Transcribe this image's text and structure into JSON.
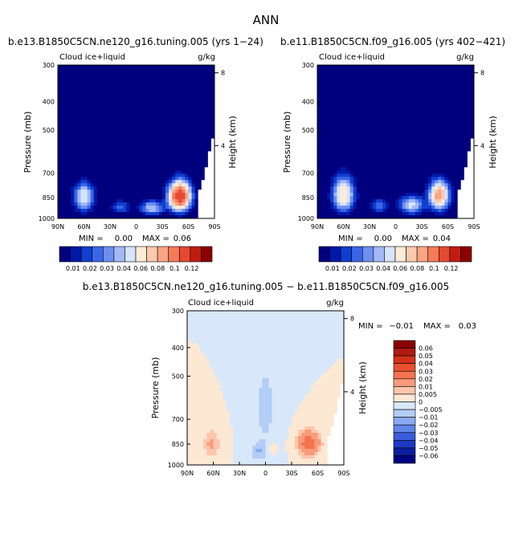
{
  "page_title": "ANN",
  "chart_data": [
    {
      "type": "heatmap",
      "title": "b.e13.B1850C5CN.ne120_g16.tuning.005 (yrs 1−24)",
      "left_label": "Cloud ice+liquid",
      "units": "g/kg",
      "xlabel": "",
      "ylabel": "Pressure (mb)",
      "ylabel_right": "Height (km)",
      "x_ticks": [
        "90N",
        "60N",
        "30N",
        "0",
        "30S",
        "60S",
        "90S"
      ],
      "y_ticks": [
        "300",
        "400",
        "500",
        "700",
        "850",
        "1000"
      ],
      "height_ticks": [
        "8",
        "4"
      ],
      "ylim": [
        1000,
        300
      ],
      "min_label": "MIN =",
      "min_value": "0.00",
      "max_label": "MAX =",
      "max_value": "0.06",
      "colorbar": {
        "orientation": "horizontal",
        "labels": [
          "0.01",
          "0.02",
          "0.03",
          "0.04",
          "0.06",
          "0.08",
          "0.1",
          "0.12"
        ],
        "colors": [
          "#00007f",
          "#0018a8",
          "#0f3fd0",
          "#3a66e6",
          "#6d8ff0",
          "#a3b8f6",
          "#d6e4fa",
          "#fdebd8",
          "#fcc9ae",
          "#fba586",
          "#f47a5a",
          "#e64932",
          "#c21c12",
          "#8b0000"
        ]
      },
      "blobs": [
        {
          "x": 60,
          "p": 845,
          "amp": 0.025,
          "sx": 11,
          "sp": 90
        },
        {
          "x": -50,
          "p": 840,
          "amp": 0.06,
          "sx": 12,
          "sp": 90
        },
        {
          "x": -18,
          "p": 920,
          "amp": 0.02,
          "sx": 13,
          "sp": 50
        },
        {
          "x": 18,
          "p": 915,
          "amp": 0.012,
          "sx": 10,
          "sp": 45
        }
      ]
    },
    {
      "type": "heatmap",
      "title": "b.e11.B1850C5CN.f09_g16.005 (yrs 402−421)",
      "left_label": "Cloud ice+liquid",
      "units": "g/kg",
      "xlabel": "",
      "ylabel": "Pressure (mb)",
      "ylabel_right": "Height (km)",
      "x_ticks": [
        "90N",
        "60N",
        "30N",
        "0",
        "30S",
        "60S",
        "90S"
      ],
      "y_ticks": [
        "300",
        "400",
        "500",
        "700",
        "850",
        "1000"
      ],
      "height_ticks": [
        "8",
        "4"
      ],
      "ylim": [
        1000,
        300
      ],
      "min_label": "MIN =",
      "min_value": "0.00",
      "max_label": "MAX =",
      "max_value": "0.04",
      "colorbar": {
        "orientation": "horizontal",
        "labels": [
          "0.01",
          "0.02",
          "0.03",
          "0.04",
          "0.06",
          "0.08",
          "0.1",
          "0.12"
        ],
        "colors": [
          "#00007f",
          "#0018a8",
          "#0f3fd0",
          "#3a66e6",
          "#6d8ff0",
          "#a3b8f6",
          "#d6e4fa",
          "#fdebd8",
          "#fcc9ae",
          "#fba586",
          "#f47a5a",
          "#e64932",
          "#c21c12",
          "#8b0000"
        ]
      },
      "blobs": [
        {
          "x": 60,
          "p": 830,
          "amp": 0.03,
          "sx": 12,
          "sp": 110
        },
        {
          "x": -50,
          "p": 835,
          "amp": 0.04,
          "sx": 11,
          "sp": 90
        },
        {
          "x": -18,
          "p": 900,
          "amp": 0.022,
          "sx": 14,
          "sp": 60
        },
        {
          "x": 18,
          "p": 905,
          "amp": 0.012,
          "sx": 10,
          "sp": 50
        }
      ]
    },
    {
      "type": "heatmap",
      "title": "b.e13.B1850C5CN.ne120_g16.tuning.005 − b.e11.B1850C5CN.f09_g16.005",
      "left_label": "Cloud ice+liquid",
      "units": "g/kg",
      "xlabel": "",
      "ylabel": "Pressure (mb)",
      "ylabel_right": "Height (km)",
      "x_ticks": [
        "90N",
        "60N",
        "30N",
        "0",
        "30S",
        "60S",
        "90S"
      ],
      "y_ticks": [
        "300",
        "400",
        "500",
        "700",
        "850",
        "1000"
      ],
      "height_ticks": [
        "8",
        "4"
      ],
      "ylim": [
        1000,
        300
      ],
      "min_label": "MIN =",
      "min_value": "−0.01",
      "max_label": "MAX =",
      "max_value": "0.03",
      "colorbar": {
        "orientation": "vertical",
        "labels": [
          "0.06",
          "0.05",
          "0.04",
          "0.03",
          "0.02",
          "0.01",
          "0.005",
          "0",
          "−0.005",
          "−0.01",
          "−0.02",
          "−0.03",
          "−0.04",
          "−0.05",
          "−0.06"
        ],
        "colors": [
          "#8b0000",
          "#b01a10",
          "#d2301c",
          "#e8502f",
          "#f47450",
          "#f99a7a",
          "#fcc6ab",
          "#fde8d4",
          "#d8e8fa",
          "#b3cdf6",
          "#8aaaf0",
          "#5f85e8",
          "#3a5ddc",
          "#1d39c4",
          "#0a1ea0",
          "#000080"
        ]
      },
      "blobs": [
        {
          "x": 62,
          "p": 850,
          "amp": 0.012,
          "sx": 9,
          "sp": 90
        },
        {
          "x": -50,
          "p": 845,
          "amp": 0.028,
          "sx": 12,
          "sp": 80
        },
        {
          "x": 0,
          "p": 640,
          "amp": -0.0065,
          "sx": 15,
          "sp": 260
        },
        {
          "x": 8,
          "p": 900,
          "amp": -0.009,
          "sx": 9,
          "sp": 60
        },
        {
          "x": -8,
          "p": 880,
          "amp": 0.008,
          "sx": 4,
          "sp": 30
        }
      ]
    }
  ]
}
